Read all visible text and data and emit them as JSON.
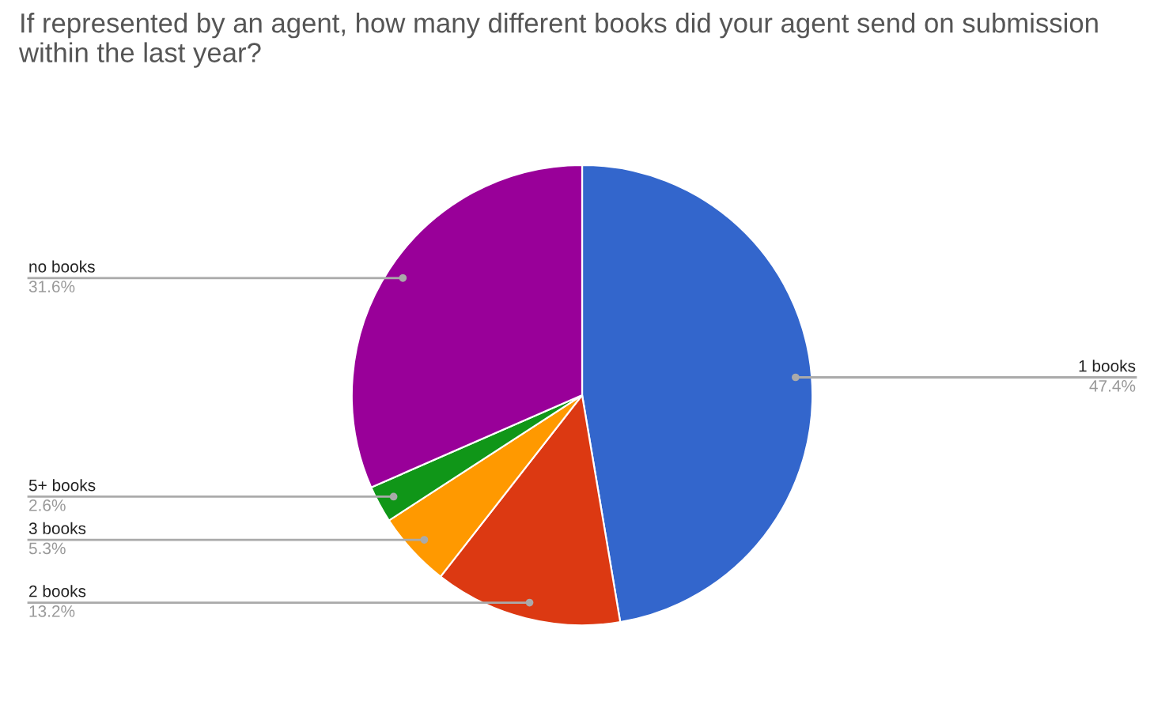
{
  "chart_data": {
    "type": "pie",
    "title": "If represented by an agent, how many different books did your agent send on submission within the last year?",
    "categories": [
      "1 books",
      "2 books",
      "3 books",
      "5+ books",
      "no books"
    ],
    "values": [
      47.4,
      13.2,
      5.3,
      2.6,
      31.6
    ],
    "value_labels": [
      "47.4%",
      "13.2%",
      "5.3%",
      "2.6%",
      "31.6%"
    ],
    "colors": [
      "#3366cc",
      "#dc3912",
      "#ff9900",
      "#109618",
      "#990099"
    ],
    "legend": false
  }
}
